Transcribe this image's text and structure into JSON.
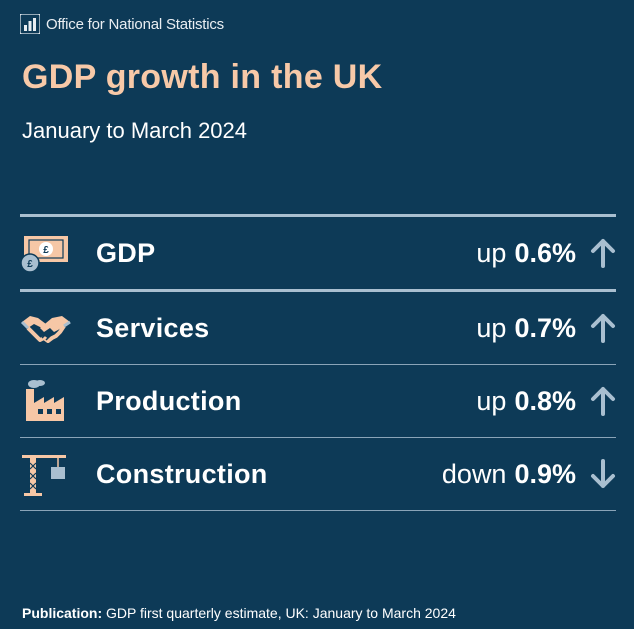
{
  "header": {
    "org_name": "Office for National Statistics",
    "logo_icon": "ons-bars-logo-icon"
  },
  "title": "GDP growth in the UK",
  "subtitle": "January to March 2024",
  "rows": [
    {
      "label": "GDP",
      "direction": "up",
      "value": "0.6%",
      "icon": "banknote-coin-icon",
      "arrow": "arrow-up-icon"
    },
    {
      "label": "Services",
      "direction": "up",
      "value": "0.7%",
      "icon": "handshake-icon",
      "arrow": "arrow-up-icon"
    },
    {
      "label": "Production",
      "direction": "up",
      "value": "0.8%",
      "icon": "factory-icon",
      "arrow": "arrow-up-icon"
    },
    {
      "label": "Construction",
      "direction": "down",
      "value": "0.9%",
      "icon": "crane-icon",
      "arrow": "arrow-down-icon"
    }
  ],
  "footer": {
    "label": "Publication:",
    "text": " GDP first quarterly estimate, UK: January to March 2024"
  },
  "colors": {
    "background": "#0d3a57",
    "title": "#f7c9a8",
    "icon_peach": "#f6c7a6",
    "arrow": "#a9bfd0"
  }
}
